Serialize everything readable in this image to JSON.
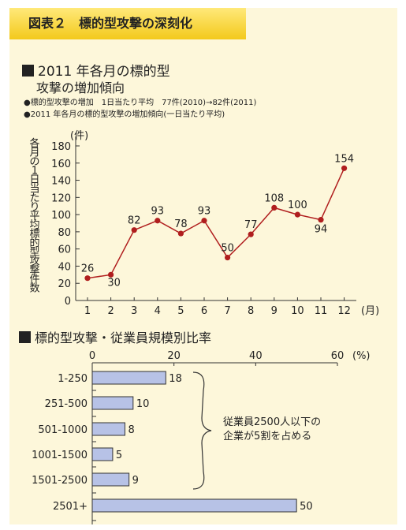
{
  "figure_label": "図表２　標的型攻撃の深刻化",
  "section1": {
    "title": "2011 年各月の標的型",
    "subtitle": "攻撃の増加傾向",
    "note1": "●標的型攻撃の増加　1日当たり平均　77件(2010)→82件(2011)",
    "note2": "●2011 年各月の標的型攻撃の増加傾向(一日当たり平均)"
  },
  "section2": {
    "title": "標的型攻撃・従業員規模別比率",
    "annotation_line1": "従業員2500人以下の",
    "annotation_line2": "企業が5割を占める"
  },
  "chart_data": [
    {
      "type": "line",
      "ylabel": "各月の1日当たり平均標的型攻撃件数",
      "yunit": "(件)",
      "xunit": "(月)",
      "x": [
        "1",
        "2",
        "3",
        "4",
        "5",
        "6",
        "7",
        "8",
        "9",
        "10",
        "11",
        "12"
      ],
      "values": [
        26,
        30,
        82,
        93,
        78,
        93,
        50,
        77,
        108,
        100,
        94,
        154
      ],
      "ylim": [
        0,
        180
      ],
      "yticks": [
        0,
        20,
        40,
        60,
        80,
        100,
        120,
        140,
        160,
        180
      ],
      "line_color": "#b01e1e",
      "grid": false
    },
    {
      "type": "bar",
      "orientation": "horizontal",
      "categories": [
        "1-250",
        "251-500",
        "501-1000",
        "1001-1500",
        "1501-2500",
        "2501+"
      ],
      "values": [
        18,
        10,
        8,
        5,
        9,
        50
      ],
      "xlim": [
        0,
        60
      ],
      "xticks": [
        0,
        20,
        40,
        60
      ],
      "xunit": "(%)",
      "bar_color": "#b7c2e6",
      "grid": false
    }
  ]
}
